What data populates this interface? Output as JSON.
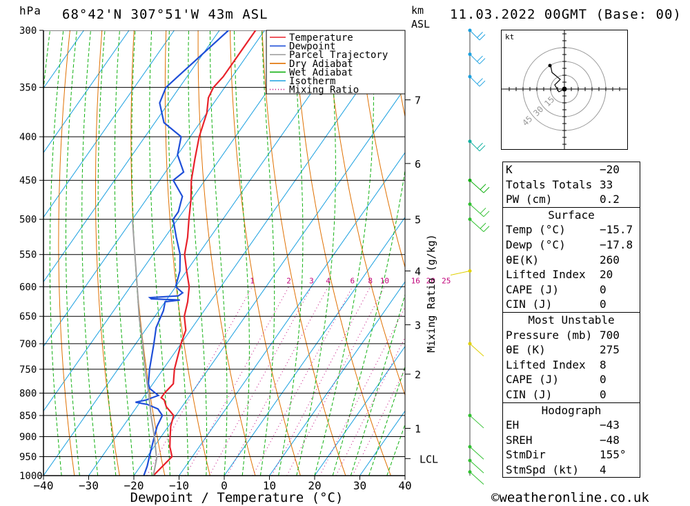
{
  "header": {
    "hpa_label": "hPa",
    "location": "68°42'N  307°51'W  43m  ASL",
    "km_label": "km",
    "asl_label": "ASL",
    "datetime": "11.03.2022  00GMT  (Base: 00)"
  },
  "legend": [
    {
      "label": "Temperature",
      "color": "#e8212a",
      "style": "solid"
    },
    {
      "label": "Dewpoint",
      "color": "#1f4fd8",
      "style": "solid"
    },
    {
      "label": "Parcel Trajectory",
      "color": "#a0a0a0",
      "style": "solid"
    },
    {
      "label": "Dry Adiabat",
      "color": "#e07000",
      "style": "solid"
    },
    {
      "label": "Wet Adiabat",
      "color": "#10b010",
      "style": "solid"
    },
    {
      "label": "Isotherm",
      "color": "#1aa0e0",
      "style": "solid"
    },
    {
      "label": "Mixing Ratio",
      "color": "#c0007a",
      "style": "dotted"
    }
  ],
  "chart_data": {
    "type": "line",
    "title": "",
    "xlabel": "Dewpoint / Temperature (°C)",
    "ylabel": "hPa",
    "xlim": [
      -40,
      40
    ],
    "ylim": [
      1000,
      300
    ],
    "y_scale": "log",
    "skew": true,
    "x_ticks": [
      -40,
      -30,
      -20,
      -10,
      0,
      10,
      20,
      30,
      40
    ],
    "pressure_ticks": [
      300,
      350,
      400,
      450,
      500,
      550,
      600,
      650,
      700,
      750,
      800,
      850,
      900,
      950,
      1000
    ],
    "km_axis": {
      "label": "km ASL",
      "ticks": [
        {
          "label": "7",
          "p": 362
        },
        {
          "label": "6",
          "p": 430
        },
        {
          "label": "5",
          "p": 500
        },
        {
          "label": "4",
          "p": 575
        },
        {
          "label": "3",
          "p": 665
        },
        {
          "label": "2",
          "p": 760
        },
        {
          "label": "1",
          "p": 880
        },
        {
          "label": "LCL",
          "p": 955
        }
      ]
    },
    "mixing_ratio_axis": {
      "label": "Mixing Ratio (g/kg)",
      "values": [
        1,
        2,
        3,
        4,
        6,
        8,
        10,
        16,
        20,
        25
      ]
    },
    "series": [
      {
        "name": "Temperature",
        "color": "#e8212a",
        "points": [
          [
            1000,
            -15.7
          ],
          [
            970,
            -15
          ],
          [
            950,
            -14.5
          ],
          [
            925,
            -16.5
          ],
          [
            900,
            -18
          ],
          [
            875,
            -19.5
          ],
          [
            850,
            -20.5
          ],
          [
            830,
            -23.5
          ],
          [
            815,
            -25
          ],
          [
            810,
            -26
          ],
          [
            800,
            -26
          ],
          [
            780,
            -25.5
          ],
          [
            750,
            -27.5
          ],
          [
            700,
            -30
          ],
          [
            675,
            -31
          ],
          [
            650,
            -33.5
          ],
          [
            625,
            -35
          ],
          [
            600,
            -37
          ],
          [
            575,
            -40
          ],
          [
            550,
            -43
          ],
          [
            525,
            -45
          ],
          [
            500,
            -47.5
          ],
          [
            475,
            -50
          ],
          [
            450,
            -53
          ],
          [
            425,
            -55.5
          ],
          [
            400,
            -58
          ],
          [
            375,
            -60
          ],
          [
            360,
            -62
          ],
          [
            350,
            -62.5
          ],
          [
            340,
            -62
          ],
          [
            320,
            -62
          ],
          [
            300,
            -62
          ]
        ]
      },
      {
        "name": "Dewpoint",
        "color": "#1f4fd8",
        "points": [
          [
            1000,
            -17.8
          ],
          [
            975,
            -18.5
          ],
          [
            950,
            -19.5
          ],
          [
            925,
            -20.5
          ],
          [
            900,
            -21.5
          ],
          [
            875,
            -22.5
          ],
          [
            850,
            -23
          ],
          [
            835,
            -25
          ],
          [
            825,
            -28
          ],
          [
            820,
            -31
          ],
          [
            815,
            -29
          ],
          [
            810,
            -28
          ],
          [
            805,
            -27
          ],
          [
            800,
            -28
          ],
          [
            790,
            -30
          ],
          [
            780,
            -31
          ],
          [
            750,
            -33
          ],
          [
            700,
            -36
          ],
          [
            670,
            -38
          ],
          [
            640,
            -39
          ],
          [
            625,
            -40
          ],
          [
            622,
            -37
          ],
          [
            620,
            -43.5
          ],
          [
            618,
            -44
          ],
          [
            615,
            -38
          ],
          [
            610,
            -37.5
          ],
          [
            600,
            -40
          ],
          [
            575,
            -41.5
          ],
          [
            550,
            -44
          ],
          [
            525,
            -47.5
          ],
          [
            500,
            -51
          ],
          [
            490,
            -51
          ],
          [
            470,
            -52.5
          ],
          [
            450,
            -57
          ],
          [
            440,
            -56
          ],
          [
            420,
            -60
          ],
          [
            400,
            -62
          ],
          [
            385,
            -68
          ],
          [
            365,
            -72
          ],
          [
            350,
            -73
          ],
          [
            300,
            -68
          ]
        ]
      },
      {
        "name": "Parcel Trajectory",
        "color": "#a0a0a0",
        "points": [
          [
            1000,
            -15.7
          ],
          [
            955,
            -17.6
          ],
          [
            900,
            -21.5
          ],
          [
            850,
            -25.5
          ],
          [
            800,
            -29.5
          ],
          [
            750,
            -34
          ],
          [
            700,
            -38.5
          ],
          [
            650,
            -43.5
          ],
          [
            600,
            -48.5
          ],
          [
            550,
            -54
          ],
          [
            500,
            -60
          ]
        ]
      }
    ]
  },
  "hodograph": {
    "unit_label": "kt",
    "ring_labels": [
      "15",
      "30",
      "45"
    ]
  },
  "indices": [
    {
      "title": "",
      "rows": [
        {
          "label": "K",
          "value": "−20"
        },
        {
          "label": "Totals Totals",
          "value": "33"
        },
        {
          "label": "PW (cm)",
          "value": "0.2"
        }
      ]
    },
    {
      "title": "Surface",
      "rows": [
        {
          "label": "Temp (°C)",
          "value": "−15.7"
        },
        {
          "label": "Dewp (°C)",
          "value": "−17.8"
        },
        {
          "label": "θE(K)",
          "value": "260"
        },
        {
          "label": "Lifted Index",
          "value": "20"
        },
        {
          "label": "CAPE (J)",
          "value": "0"
        },
        {
          "label": "CIN (J)",
          "value": "0"
        }
      ]
    },
    {
      "title": "Most Unstable",
      "rows": [
        {
          "label": "Pressure (mb)",
          "value": "700"
        },
        {
          "label": "θE (K)",
          "value": "275"
        },
        {
          "label": "Lifted Index",
          "value": "8"
        },
        {
          "label": "CAPE (J)",
          "value": "0"
        },
        {
          "label": "CIN (J)",
          "value": "0"
        }
      ]
    },
    {
      "title": "Hodograph",
      "rows": [
        {
          "label": "EH",
          "value": "−43"
        },
        {
          "label": "SREH",
          "value": "−48"
        },
        {
          "label": "StmDir",
          "value": "155°"
        },
        {
          "label": "StmSpd (kt)",
          "value": "4"
        }
      ]
    }
  ],
  "credit": "©weatheronline.co.uk"
}
